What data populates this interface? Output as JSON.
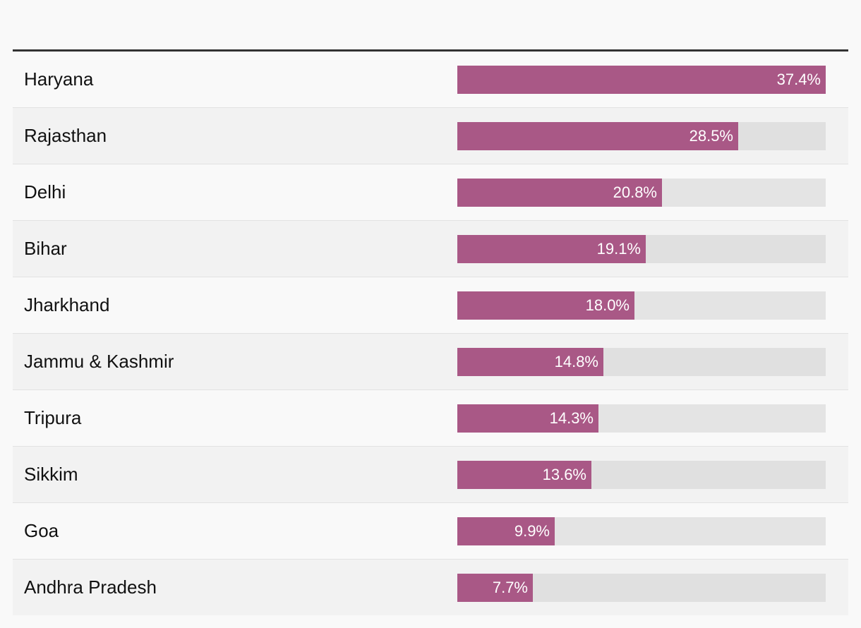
{
  "chart_data": {
    "type": "bar",
    "orientation": "horizontal",
    "title": "",
    "xlabel": "",
    "ylabel": "",
    "xlim": [
      0,
      37.4
    ],
    "grid": false,
    "legend": "none",
    "bar_color": "#a95886",
    "track_color": "#e4e4e4",
    "categories": [
      "Haryana",
      "Rajasthan",
      "Delhi",
      "Bihar",
      "Jharkhand",
      "Jammu & Kashmir",
      "Tripura",
      "Sikkim",
      "Goa",
      "Andhra Pradesh"
    ],
    "values": [
      37.4,
      28.5,
      20.8,
      19.1,
      18.0,
      14.8,
      14.3,
      13.6,
      9.9,
      7.7
    ],
    "value_labels": [
      "37.4%",
      "28.5%",
      "20.8%",
      "19.1%",
      "18.0%",
      "14.8%",
      "14.3%",
      "13.6%",
      "9.9%",
      "7.7%"
    ]
  }
}
